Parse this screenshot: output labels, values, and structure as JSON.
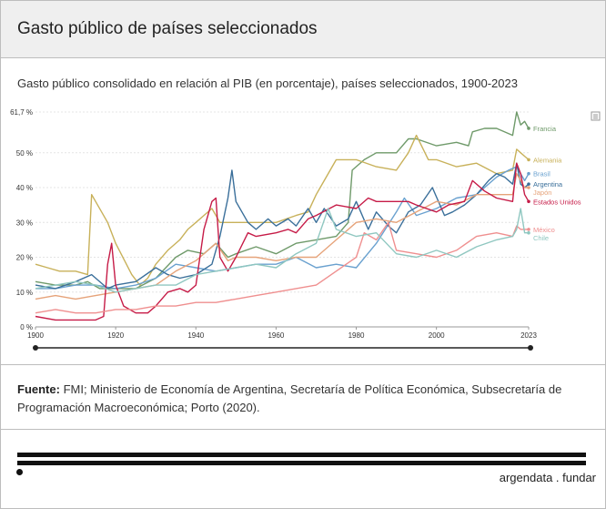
{
  "header": {
    "title": "Gasto público de países seleccionados"
  },
  "subtitle": "Gasto público consolidado en relación al PIB (en porcentaje), países seleccionados, 1900-2023",
  "source": {
    "label": "Fuente:",
    "text": "FMI; Ministerio de Economía de Argentina, Secretaría de Política Económica, Subsecretaría de Programación Macroeconómica; Porto (2020)."
  },
  "brand": "argendata . fundar",
  "chart_data": {
    "type": "line",
    "title": "Gasto público consolidado en relación al PIB (en porcentaje), países seleccionados, 1900-2023",
    "xlabel": "",
    "ylabel": "",
    "xlim": [
      1900,
      2023
    ],
    "ylim": [
      0,
      61.7
    ],
    "y_ticks": [
      0,
      10,
      20,
      30,
      40,
      50,
      61.7
    ],
    "y_tick_labels": [
      "0 %",
      "10 %",
      "20 %",
      "30 %",
      "40 %",
      "50 %",
      "61,7 %"
    ],
    "x_ticks": [
      1900,
      1920,
      1940,
      1960,
      1980,
      2000,
      2023
    ],
    "x_tick_labels": [
      "1900",
      "1920",
      "1940",
      "1960",
      "1980",
      "2000",
      "2023"
    ],
    "grid": true,
    "legend": "right-end labels",
    "series": [
      {
        "name": "Francia",
        "color": "#6f9a6a",
        "points": [
          [
            1900,
            13
          ],
          [
            1905,
            12
          ],
          [
            1910,
            12
          ],
          [
            1913,
            13
          ],
          [
            1916,
            11
          ],
          [
            1920,
            11
          ],
          [
            1925,
            11
          ],
          [
            1930,
            14
          ],
          [
            1935,
            20
          ],
          [
            1938,
            22
          ],
          [
            1942,
            21
          ],
          [
            1945,
            24
          ],
          [
            1948,
            20
          ],
          [
            1950,
            21
          ],
          [
            1955,
            23
          ],
          [
            1960,
            21
          ],
          [
            1965,
            24
          ],
          [
            1970,
            25
          ],
          [
            1975,
            26
          ],
          [
            1978,
            30
          ],
          [
            1979,
            45
          ],
          [
            1982,
            48
          ],
          [
            1985,
            50
          ],
          [
            1990,
            50
          ],
          [
            1993,
            54
          ],
          [
            1995,
            54
          ],
          [
            2000,
            52
          ],
          [
            2005,
            53
          ],
          [
            2008,
            52
          ],
          [
            2009,
            56
          ],
          [
            2012,
            57
          ],
          [
            2015,
            57
          ],
          [
            2019,
            55
          ],
          [
            2020,
            61.7
          ],
          [
            2021,
            58
          ],
          [
            2022,
            59
          ],
          [
            2023,
            57
          ]
        ]
      },
      {
        "name": "Alemania",
        "color": "#c8b15a",
        "points": [
          [
            1900,
            18
          ],
          [
            1903,
            17
          ],
          [
            1906,
            16
          ],
          [
            1910,
            16
          ],
          [
            1913,
            15
          ],
          [
            1914,
            38
          ],
          [
            1918,
            30
          ],
          [
            1920,
            24
          ],
          [
            1924,
            15
          ],
          [
            1926,
            12
          ],
          [
            1928,
            14
          ],
          [
            1930,
            18
          ],
          [
            1933,
            22
          ],
          [
            1936,
            25
          ],
          [
            1938,
            28
          ],
          [
            1940,
            30
          ],
          [
            1942,
            32
          ],
          [
            1944,
            34
          ],
          [
            1946,
            30
          ],
          [
            1950,
            30
          ],
          [
            1955,
            30
          ],
          [
            1960,
            30
          ],
          [
            1965,
            32
          ],
          [
            1968,
            33
          ],
          [
            1970,
            38
          ],
          [
            1972,
            42
          ],
          [
            1975,
            48
          ],
          [
            1980,
            48
          ],
          [
            1985,
            46
          ],
          [
            1990,
            45
          ],
          [
            1993,
            50
          ],
          [
            1995,
            55
          ],
          [
            1998,
            48
          ],
          [
            2000,
            48
          ],
          [
            2005,
            46
          ],
          [
            2010,
            47
          ],
          [
            2015,
            44
          ],
          [
            2019,
            45
          ],
          [
            2020,
            51
          ],
          [
            2021,
            50
          ],
          [
            2022,
            49
          ],
          [
            2023,
            48
          ]
        ]
      },
      {
        "name": "Brasil",
        "color": "#6aa1cf",
        "points": [
          [
            1900,
            11
          ],
          [
            1905,
            11
          ],
          [
            1910,
            12
          ],
          [
            1915,
            12
          ],
          [
            1920,
            11
          ],
          [
            1925,
            12
          ],
          [
            1930,
            14
          ],
          [
            1935,
            18
          ],
          [
            1940,
            17
          ],
          [
            1945,
            16
          ],
          [
            1950,
            17
          ],
          [
            1955,
            18
          ],
          [
            1960,
            18
          ],
          [
            1965,
            20
          ],
          [
            1970,
            17
          ],
          [
            1975,
            18
          ],
          [
            1980,
            17
          ],
          [
            1985,
            24
          ],
          [
            1990,
            33
          ],
          [
            1992,
            37
          ],
          [
            1995,
            32
          ],
          [
            2000,
            34
          ],
          [
            2005,
            37
          ],
          [
            2010,
            38
          ],
          [
            2015,
            43
          ],
          [
            2018,
            45
          ],
          [
            2020,
            46
          ],
          [
            2022,
            42
          ],
          [
            2023,
            44
          ]
        ]
      },
      {
        "name": "Argentina",
        "color": "#3a6f9a",
        "points": [
          [
            1900,
            12
          ],
          [
            1905,
            11
          ],
          [
            1910,
            13
          ],
          [
            1914,
            15
          ],
          [
            1918,
            11
          ],
          [
            1920,
            12
          ],
          [
            1925,
            13
          ],
          [
            1930,
            17
          ],
          [
            1933,
            15
          ],
          [
            1936,
            14
          ],
          [
            1940,
            15
          ],
          [
            1944,
            18
          ],
          [
            1946,
            26
          ],
          [
            1948,
            37
          ],
          [
            1949,
            45
          ],
          [
            1950,
            36
          ],
          [
            1953,
            30
          ],
          [
            1955,
            28
          ],
          [
            1958,
            31
          ],
          [
            1960,
            29
          ],
          [
            1963,
            31
          ],
          [
            1965,
            29
          ],
          [
            1968,
            34
          ],
          [
            1970,
            30
          ],
          [
            1972,
            34
          ],
          [
            1975,
            29
          ],
          [
            1978,
            31
          ],
          [
            1980,
            36
          ],
          [
            1983,
            28
          ],
          [
            1985,
            33
          ],
          [
            1988,
            29
          ],
          [
            1990,
            27
          ],
          [
            1993,
            33
          ],
          [
            1996,
            35
          ],
          [
            1999,
            40
          ],
          [
            2002,
            32
          ],
          [
            2004,
            33
          ],
          [
            2007,
            35
          ],
          [
            2010,
            38
          ],
          [
            2013,
            42
          ],
          [
            2015,
            44
          ],
          [
            2017,
            43
          ],
          [
            2019,
            41
          ],
          [
            2020,
            47
          ],
          [
            2021,
            41
          ],
          [
            2022,
            40
          ],
          [
            2023,
            41
          ]
        ]
      },
      {
        "name": "Japón",
        "color": "#e6a37a",
        "points": [
          [
            1900,
            8
          ],
          [
            1905,
            9
          ],
          [
            1910,
            8
          ],
          [
            1915,
            9
          ],
          [
            1920,
            10
          ],
          [
            1925,
            11
          ],
          [
            1930,
            12
          ],
          [
            1935,
            16
          ],
          [
            1940,
            19
          ],
          [
            1943,
            22
          ],
          [
            1945,
            24
          ],
          [
            1948,
            19
          ],
          [
            1950,
            20
          ],
          [
            1955,
            20
          ],
          [
            1960,
            19
          ],
          [
            1965,
            20
          ],
          [
            1970,
            20
          ],
          [
            1975,
            25
          ],
          [
            1980,
            30
          ],
          [
            1985,
            31
          ],
          [
            1990,
            30
          ],
          [
            1995,
            33
          ],
          [
            2000,
            36
          ],
          [
            2005,
            35
          ],
          [
            2010,
            38
          ],
          [
            2015,
            38
          ],
          [
            2019,
            38
          ],
          [
            2020,
            44
          ],
          [
            2021,
            42
          ],
          [
            2022,
            40
          ],
          [
            2023,
            40
          ]
        ]
      },
      {
        "name": "Estados Unidos",
        "color": "#c61b47",
        "points": [
          [
            1900,
            3
          ],
          [
            1905,
            2
          ],
          [
            1910,
            2
          ],
          [
            1915,
            2
          ],
          [
            1917,
            3
          ],
          [
            1918,
            18
          ],
          [
            1919,
            24
          ],
          [
            1920,
            12
          ],
          [
            1922,
            6
          ],
          [
            1925,
            4
          ],
          [
            1928,
            4
          ],
          [
            1930,
            6
          ],
          [
            1933,
            10
          ],
          [
            1936,
            11
          ],
          [
            1938,
            10
          ],
          [
            1940,
            12
          ],
          [
            1942,
            28
          ],
          [
            1944,
            36
          ],
          [
            1945,
            37
          ],
          [
            1946,
            20
          ],
          [
            1948,
            16
          ],
          [
            1950,
            20
          ],
          [
            1953,
            27
          ],
          [
            1955,
            26
          ],
          [
            1960,
            27
          ],
          [
            1963,
            28
          ],
          [
            1965,
            27
          ],
          [
            1968,
            31
          ],
          [
            1970,
            32
          ],
          [
            1975,
            35
          ],
          [
            1980,
            34
          ],
          [
            1983,
            37
          ],
          [
            1985,
            36
          ],
          [
            1990,
            36
          ],
          [
            1993,
            36
          ],
          [
            1995,
            35
          ],
          [
            2000,
            33
          ],
          [
            2003,
            35
          ],
          [
            2007,
            36
          ],
          [
            2009,
            42
          ],
          [
            2012,
            39
          ],
          [
            2015,
            37
          ],
          [
            2019,
            36
          ],
          [
            2020,
            47
          ],
          [
            2021,
            44
          ],
          [
            2022,
            38
          ],
          [
            2023,
            36
          ]
        ]
      },
      {
        "name": "México",
        "color": "#ef8f8f",
        "points": [
          [
            1900,
            4
          ],
          [
            1905,
            5
          ],
          [
            1910,
            4
          ],
          [
            1915,
            4
          ],
          [
            1920,
            5
          ],
          [
            1925,
            5
          ],
          [
            1930,
            6
          ],
          [
            1935,
            6
          ],
          [
            1940,
            7
          ],
          [
            1945,
            7
          ],
          [
            1950,
            8
          ],
          [
            1955,
            9
          ],
          [
            1960,
            10
          ],
          [
            1965,
            11
          ],
          [
            1970,
            12
          ],
          [
            1975,
            16
          ],
          [
            1980,
            20
          ],
          [
            1982,
            27
          ],
          [
            1985,
            25
          ],
          [
            1988,
            30
          ],
          [
            1990,
            22
          ],
          [
            1995,
            21
          ],
          [
            2000,
            20
          ],
          [
            2005,
            22
          ],
          [
            2010,
            26
          ],
          [
            2015,
            27
          ],
          [
            2019,
            26
          ],
          [
            2020,
            29
          ],
          [
            2021,
            28
          ],
          [
            2022,
            28
          ],
          [
            2023,
            28
          ]
        ]
      },
      {
        "name": "Chile",
        "color": "#8fc7c0",
        "points": [
          [
            1900,
            11
          ],
          [
            1905,
            12
          ],
          [
            1910,
            13
          ],
          [
            1915,
            12
          ],
          [
            1920,
            10
          ],
          [
            1925,
            11
          ],
          [
            1930,
            12
          ],
          [
            1935,
            12
          ],
          [
            1940,
            15
          ],
          [
            1945,
            16
          ],
          [
            1950,
            17
          ],
          [
            1955,
            18
          ],
          [
            1960,
            17
          ],
          [
            1965,
            21
          ],
          [
            1970,
            24
          ],
          [
            1973,
            34
          ],
          [
            1975,
            28
          ],
          [
            1980,
            26
          ],
          [
            1985,
            27
          ],
          [
            1990,
            21
          ],
          [
            1995,
            20
          ],
          [
            2000,
            22
          ],
          [
            2005,
            20
          ],
          [
            2010,
            23
          ],
          [
            2015,
            25
          ],
          [
            2019,
            26
          ],
          [
            2020,
            28
          ],
          [
            2021,
            34
          ],
          [
            2022,
            27
          ],
          [
            2023,
            27
          ]
        ]
      }
    ]
  }
}
